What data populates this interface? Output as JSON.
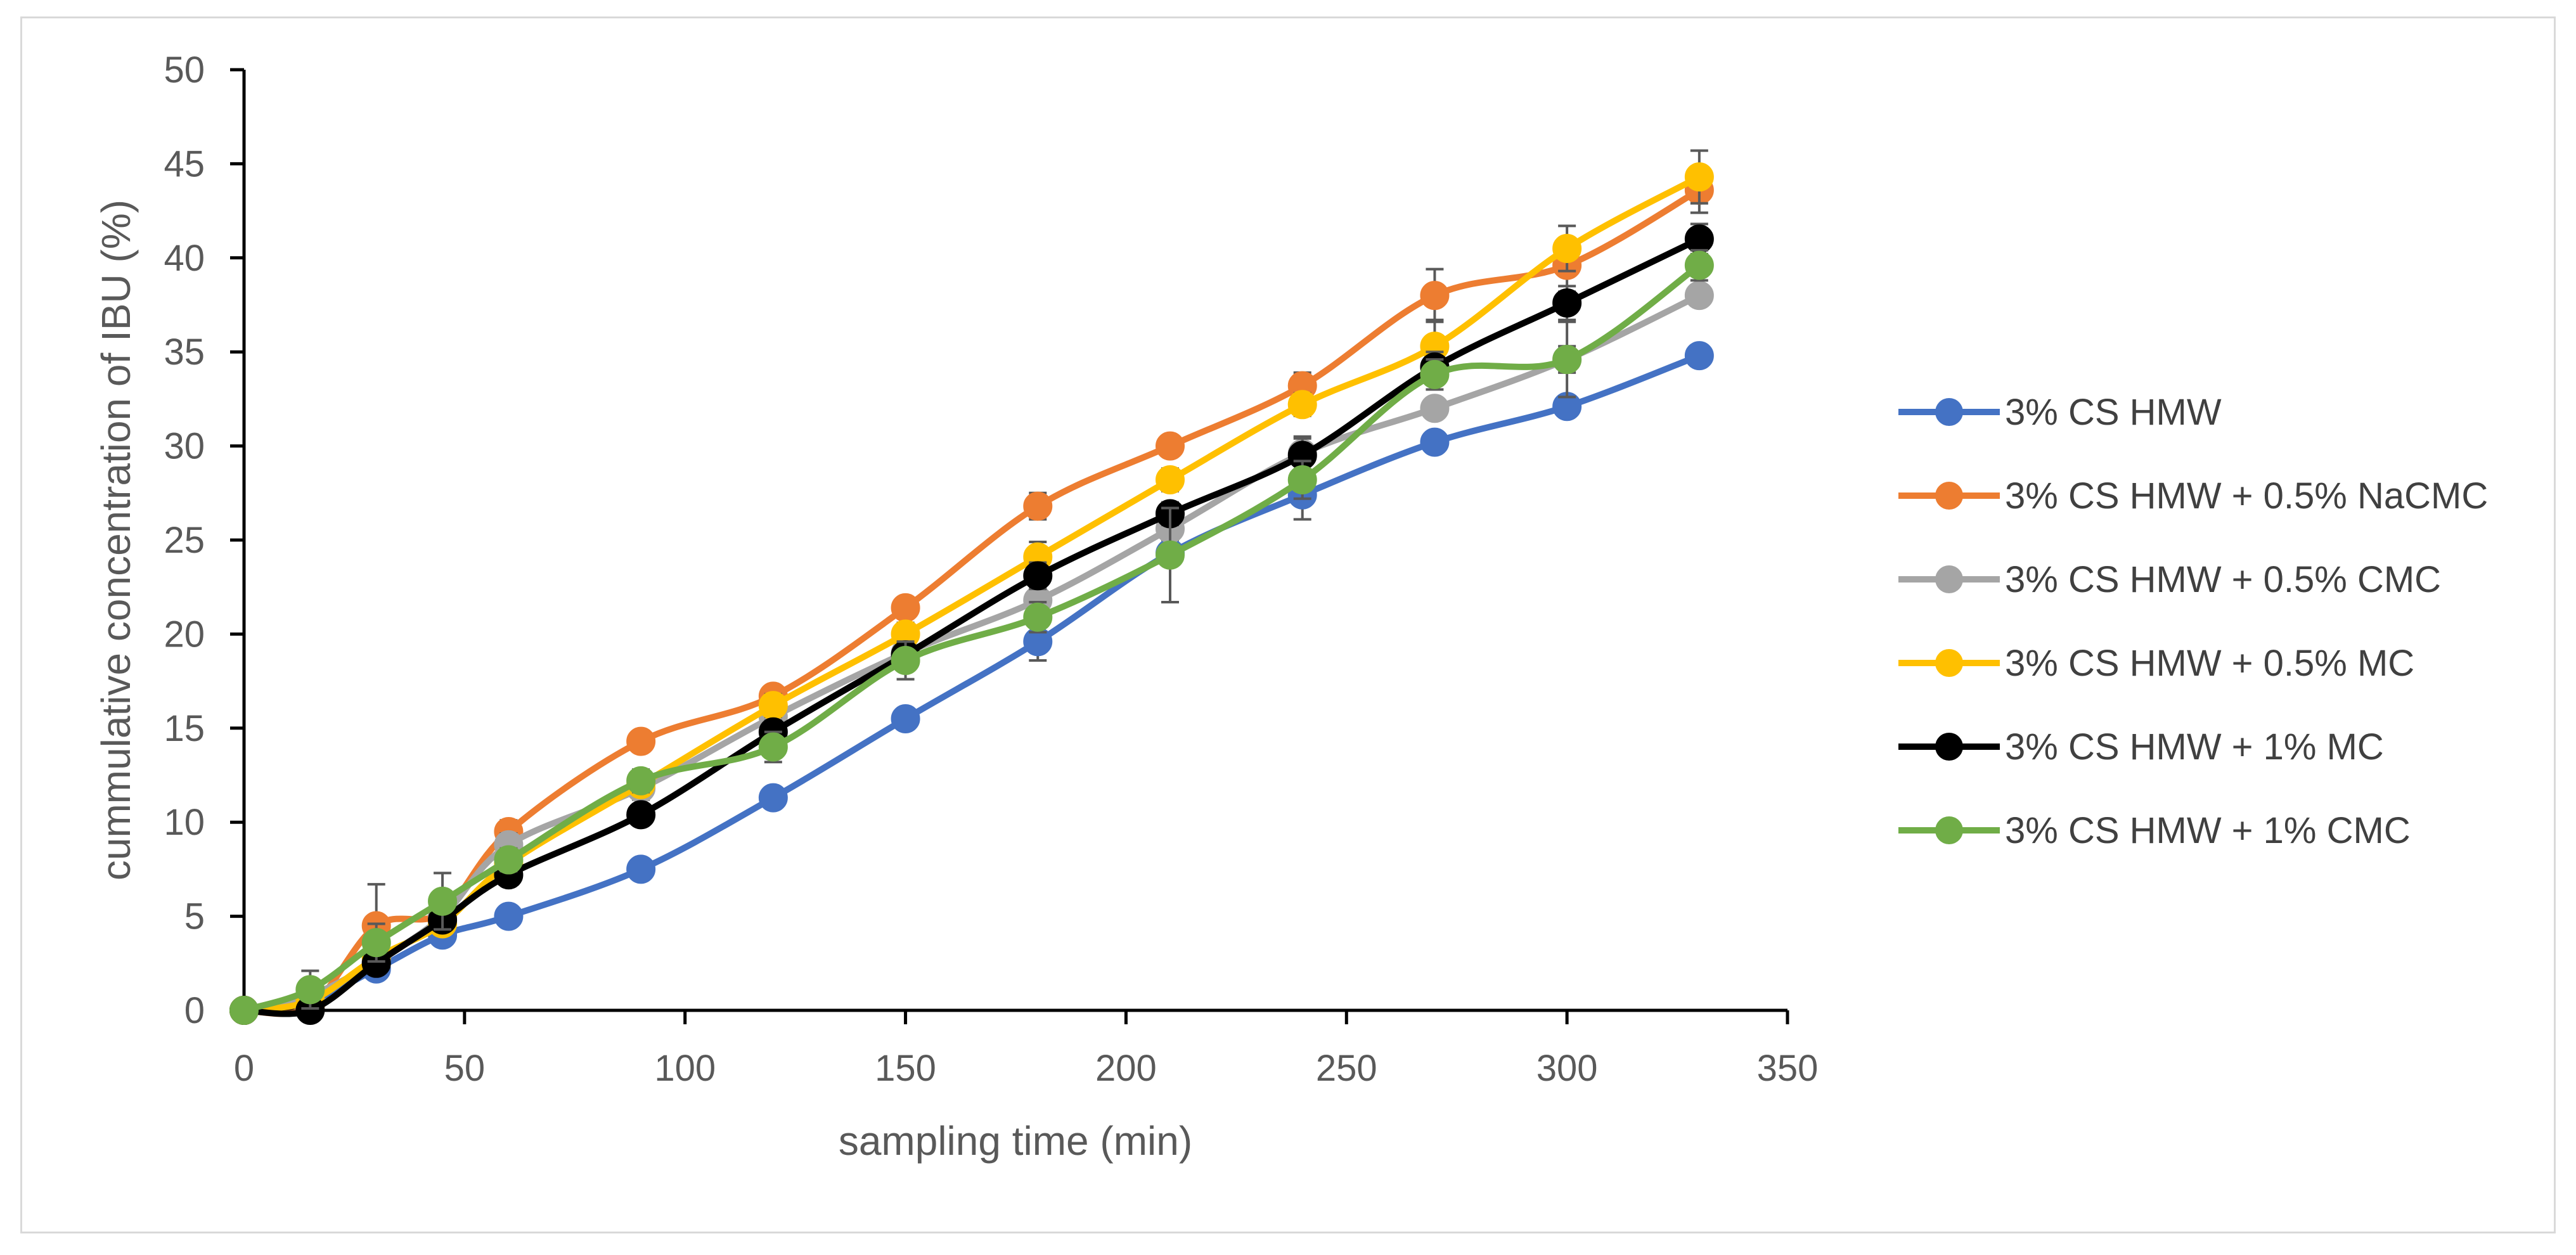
{
  "chart_data": {
    "type": "line",
    "title": "",
    "xlabel": "sampling time (min)",
    "ylabel": "cummulative concentration of IBU (%)",
    "xlim": [
      0,
      350
    ],
    "ylim": [
      0,
      50
    ],
    "x_ticks": [
      "0",
      "50",
      "100",
      "150",
      "200",
      "250",
      "300",
      "350"
    ],
    "y_ticks": [
      "0",
      "5",
      "10",
      "15",
      "20",
      "25",
      "30",
      "35",
      "40",
      "45",
      "50"
    ],
    "grid": false,
    "legend_position": "right",
    "x": [
      0,
      15,
      30,
      45,
      60,
      90,
      120,
      150,
      180,
      210,
      240,
      270,
      300,
      330
    ],
    "series": [
      {
        "name": "3% CS HMW",
        "color": "#4472C4",
        "values": [
          0,
          0.5,
          2.2,
          4.0,
          5.0,
          7.5,
          11.3,
          15.5,
          19.6,
          24.3,
          27.4,
          30.2,
          32.1,
          34.8
        ],
        "errors": [
          0,
          0.3,
          0.4,
          0.4,
          0.3,
          0.3,
          0.5,
          0.5,
          1.0,
          0.5,
          1.3,
          0.4,
          0.4,
          0.4
        ]
      },
      {
        "name": "3% CS HMW + 0.5% NaCMC",
        "color": "#ED7D31",
        "values": [
          0,
          0.2,
          4.5,
          5.2,
          9.5,
          14.3,
          16.7,
          21.4,
          26.8,
          30.0,
          33.2,
          38.0,
          39.6,
          43.6
        ],
        "errors": [
          0,
          0.3,
          2.2,
          0.6,
          0.6,
          0.4,
          0.5,
          0.5,
          0.7,
          0.5,
          0.7,
          1.4,
          1.4,
          1.2
        ]
      },
      {
        "name": "3% CS HMW + 0.5% CMC",
        "color": "#A5A5A5",
        "values": [
          0,
          0.8,
          2.6,
          5.0,
          8.8,
          11.8,
          15.6,
          19.0,
          21.8,
          25.6,
          29.6,
          32.0,
          34.6,
          38.0
        ],
        "errors": [
          0,
          0.4,
          0.4,
          0.5,
          0.6,
          0.6,
          0.6,
          0.6,
          0.7,
          0.6,
          0.9,
          0.5,
          2.0,
          0.5
        ]
      },
      {
        "name": "3% CS HMW + 0.5% MC",
        "color": "#FFC000",
        "values": [
          0,
          0.5,
          2.8,
          4.6,
          7.8,
          12.0,
          16.2,
          20.0,
          24.1,
          28.2,
          32.2,
          35.3,
          40.5,
          44.3
        ],
        "errors": [
          0,
          0.3,
          0.4,
          0.4,
          0.5,
          0.5,
          0.6,
          0.6,
          0.8,
          0.6,
          0.6,
          1.4,
          1.2,
          1.4
        ]
      },
      {
        "name": "3% CS HMW + 1% MC",
        "color": "#000000",
        "values": [
          0,
          0,
          2.5,
          4.8,
          7.2,
          10.4,
          14.8,
          18.9,
          23.1,
          26.4,
          29.5,
          34.2,
          37.6,
          41.0
        ],
        "errors": [
          0,
          0.2,
          0.4,
          0.5,
          0.5,
          0.5,
          0.6,
          0.6,
          0.7,
          0.6,
          0.9,
          0.8,
          0.9,
          0.8
        ]
      },
      {
        "name": "3% CS HMW + 1% CMC",
        "color": "#70AD47",
        "values": [
          0,
          1.1,
          3.6,
          5.8,
          8.0,
          12.2,
          14.0,
          18.6,
          20.9,
          24.2,
          28.2,
          33.8,
          34.6,
          39.6
        ],
        "errors": [
          0,
          1.0,
          1.0,
          1.5,
          0.6,
          0.6,
          0.8,
          1.0,
          0.8,
          2.5,
          1.0,
          0.8,
          0.7,
          0.8
        ]
      }
    ]
  }
}
